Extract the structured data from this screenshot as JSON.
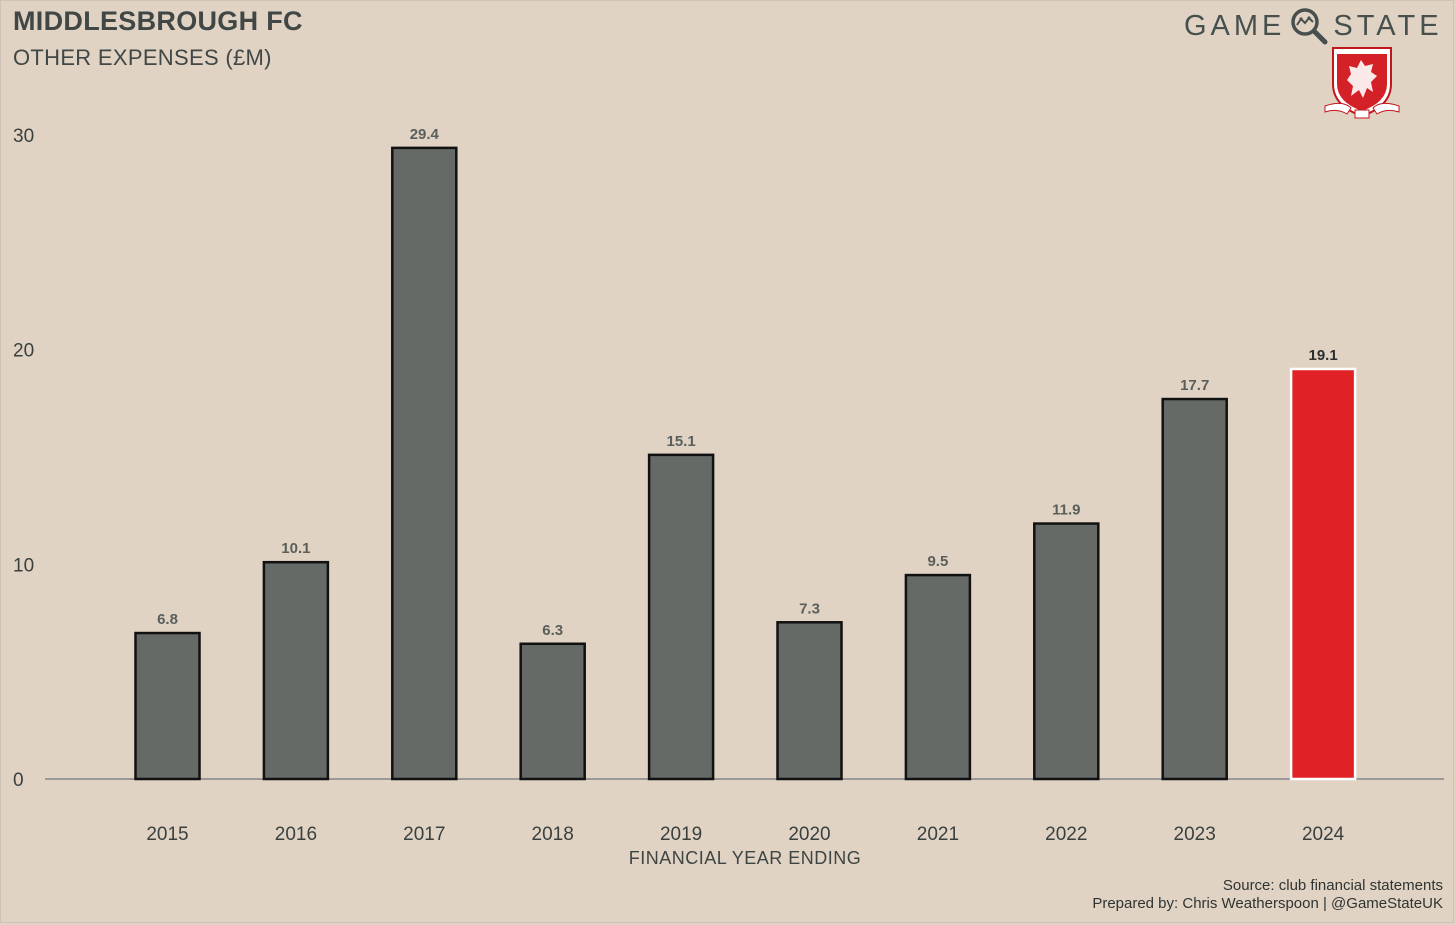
{
  "header": {
    "title": "MIDDLESBROUGH FC",
    "subtitle": "OTHER EXPENSES (£M)"
  },
  "brand": {
    "left": "GAME",
    "right": "STATE",
    "icon": "magnifier-icon",
    "crest": "middlesbrough-crest"
  },
  "chart_data": {
    "type": "bar",
    "categories": [
      "2015",
      "2016",
      "2017",
      "2018",
      "2019",
      "2020",
      "2021",
      "2022",
      "2023",
      "2024"
    ],
    "values": [
      6.8,
      10.1,
      29.4,
      6.3,
      15.1,
      7.3,
      9.5,
      11.9,
      17.7,
      19.1
    ],
    "value_labels": [
      "6.8",
      "10.1",
      "29.4",
      "6.3",
      "15.1",
      "7.3",
      "9.5",
      "11.9",
      "17.7",
      "19.1"
    ],
    "highlight_index": 9,
    "xlabel": "FINANCIAL YEAR ENDING",
    "ylabel": "",
    "ylim": [
      0,
      30
    ],
    "yticks": [
      0,
      10,
      20,
      30
    ],
    "colors": {
      "bar": "#656a66",
      "bar_highlight": "#e02226",
      "bar_stroke": "#111111",
      "bar_highlight_stroke": "#ffffff",
      "axis_line": "#999999",
      "label": "#5a5f5c",
      "label_highlight": "#2d2f2e"
    }
  },
  "footer": {
    "source": "Source: club financial statements",
    "prepared_by": "Prepared by: Chris Weatherspoon | @GameStateUK"
  }
}
